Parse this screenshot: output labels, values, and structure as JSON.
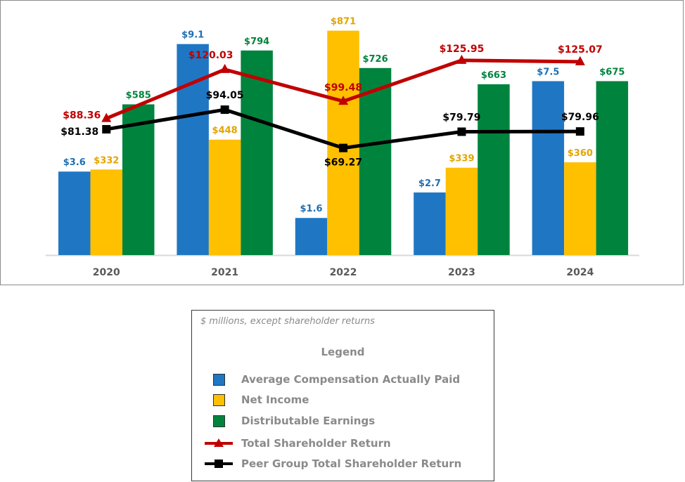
{
  "chart_data": {
    "type": "bar",
    "categories": [
      "2020",
      "2021",
      "2022",
      "2023",
      "2024"
    ],
    "bar_series": [
      {
        "name": "Average Compensation Actually Paid",
        "color": "#1f77c4",
        "values": [
          3.6,
          9.1,
          1.6,
          2.7,
          7.5
        ],
        "labels": [
          "$3.6",
          "$9.1",
          "$1.6",
          "$2.7",
          "$7.5"
        ],
        "label_color": "#1f6fb2"
      },
      {
        "name": "Net Income",
        "color": "#ffc000",
        "values": [
          332,
          448,
          871,
          339,
          360
        ],
        "labels": [
          "$332",
          "$448",
          "$871",
          "$339",
          "$360"
        ],
        "label_color": "#e3a400"
      },
      {
        "name": "Distributable Earnings",
        "color": "#00843d",
        "values": [
          585,
          794,
          726,
          663,
          675
        ],
        "labels": [
          "$585",
          "$794",
          "$726",
          "$663",
          "$675"
        ],
        "label_color": "#00843d"
      }
    ],
    "line_series": [
      {
        "name": "Total Shareholder Return",
        "color": "#c00000",
        "marker": "triangle",
        "values": [
          88.36,
          120.03,
          99.48,
          125.95,
          125.07
        ],
        "labels": [
          "$88.36",
          "$120.03",
          "$99.48",
          "$125.95",
          "$125.07"
        ]
      },
      {
        "name": "Peer Group Total Shareholder Return",
        "color": "#000000",
        "marker": "square",
        "values": [
          81.38,
          94.05,
          69.27,
          79.79,
          79.96
        ],
        "labels": [
          "$81.38",
          "$94.05",
          "$69.27",
          "$79.79",
          "$79.96"
        ]
      }
    ],
    "axes": {
      "avg_comp_range": [
        0,
        10
      ],
      "dollar_millions_range": [
        0,
        900
      ],
      "shareholder_return_range": [
        0,
        150
      ]
    },
    "grid": false
  },
  "legend": {
    "note": "$ millions, except shareholder returns",
    "title": "Legend",
    "items": [
      {
        "label": "Average Compensation Actually Paid",
        "kind": "box",
        "color": "#1f77c4"
      },
      {
        "label": "Net Income",
        "kind": "box",
        "color": "#ffc000"
      },
      {
        "label": "Distributable Earnings",
        "kind": "box",
        "color": "#00843d"
      },
      {
        "label": "Total Shareholder Return",
        "kind": "line-triangle",
        "color": "#c00000"
      },
      {
        "label": "Peer Group Total Shareholder Return",
        "kind": "line-square",
        "color": "#000000"
      }
    ]
  }
}
